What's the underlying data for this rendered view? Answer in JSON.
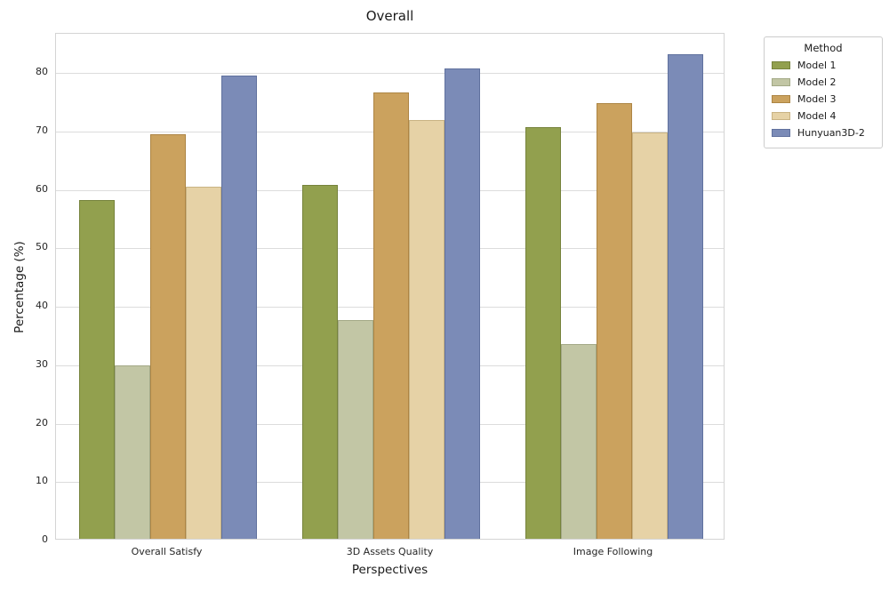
{
  "title": "Overall",
  "chart_data": {
    "type": "bar",
    "title": "Overall",
    "xlabel": "Perspectives",
    "ylabel": "Percentage (%)",
    "ylim": [
      0,
      86.7
    ],
    "yticks": [
      0,
      10,
      20,
      30,
      40,
      50,
      60,
      70,
      80
    ],
    "grid": "horizontal",
    "background": "#ffffff",
    "gridline_color": "#dcdcdc",
    "spine_color": "#d4d4d4",
    "categories": [
      "Overall Satisfy",
      "3D Assets Quality",
      "Image Following"
    ],
    "legend": {
      "title": "Method",
      "position": "outside-upper-right",
      "entries": [
        "Model 1",
        "Model 2",
        "Model 3",
        "Model 4",
        "Hunyuan3D-2"
      ]
    },
    "series": [
      {
        "name": "Model 1",
        "color": "#92a04e",
        "edge_color": "#76833c",
        "values": [
          58.0,
          60.5,
          70.4
        ]
      },
      {
        "name": "Model 2",
        "color": "#c2c6a5",
        "edge_color": "#a3a986",
        "values": [
          29.6,
          37.4,
          33.3
        ]
      },
      {
        "name": "Model 3",
        "color": "#cba25e",
        "edge_color": "#ad8544",
        "values": [
          69.2,
          76.3,
          74.6
        ]
      },
      {
        "name": "Model 4",
        "color": "#e6d2a6",
        "edge_color": "#c9b383",
        "values": [
          60.3,
          71.6,
          69.5
        ]
      },
      {
        "name": "Hunyuan3D-2",
        "color": "#7b8bb7",
        "edge_color": "#60719e",
        "values": [
          79.2,
          80.4,
          82.9
        ]
      }
    ]
  }
}
